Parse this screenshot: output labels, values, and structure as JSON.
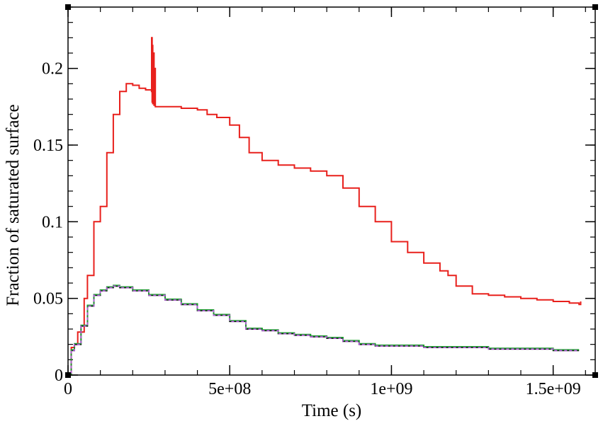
{
  "chart_data": {
    "type": "line",
    "title": "",
    "xlabel": "Time (s)",
    "ylabel": "Fraction of saturated surface",
    "xlim": [
      0,
      1630000000
    ],
    "ylim": [
      0,
      0.24
    ],
    "grid": false,
    "legend": "none",
    "x_ticks": [
      {
        "value": 0,
        "label": "0"
      },
      {
        "value": 500000000,
        "label": "5e+08"
      },
      {
        "value": 1000000000,
        "label": "1e+09"
      },
      {
        "value": 1500000000,
        "label": "1.5e+09"
      }
    ],
    "y_ticks": [
      {
        "value": 0,
        "label": "0"
      },
      {
        "value": 0.05,
        "label": "0.05"
      },
      {
        "value": 0.1,
        "label": "0.1"
      },
      {
        "value": 0.15,
        "label": "0.15"
      },
      {
        "value": 0.2,
        "label": "0.2"
      }
    ],
    "x_minor_step": 100000000,
    "y_minor_step": 0.01,
    "series": [
      {
        "color": "#e8201c",
        "style": "step",
        "x": [
          0,
          10000000,
          20000000,
          30000000,
          50000000,
          60000000,
          80000000,
          100000000,
          120000000,
          140000000,
          160000000,
          180000000,
          200000000,
          220000000,
          240000000,
          258000000,
          258500000,
          260000000,
          261000000,
          262000000,
          264000000,
          266000000,
          268000000,
          270000000,
          300000000,
          350000000,
          400000000,
          430000000,
          460000000,
          500000000,
          530000000,
          560000000,
          600000000,
          650000000,
          700000000,
          750000000,
          800000000,
          850000000,
          900000000,
          950000000,
          1000000000,
          1050000000,
          1100000000,
          1150000000,
          1175000000,
          1200000000,
          1250000000,
          1300000000,
          1350000000,
          1400000000,
          1450000000,
          1500000000,
          1550000000,
          1580000000,
          1585000000
        ],
        "y": [
          0.0,
          0.018,
          0.02,
          0.028,
          0.05,
          0.065,
          0.1,
          0.11,
          0.145,
          0.17,
          0.185,
          0.19,
          0.189,
          0.187,
          0.186,
          0.185,
          0.22,
          0.178,
          0.215,
          0.177,
          0.21,
          0.176,
          0.2,
          0.175,
          0.175,
          0.174,
          0.173,
          0.17,
          0.168,
          0.163,
          0.155,
          0.145,
          0.14,
          0.137,
          0.135,
          0.133,
          0.13,
          0.122,
          0.11,
          0.1,
          0.087,
          0.08,
          0.073,
          0.068,
          0.065,
          0.058,
          0.053,
          0.052,
          0.051,
          0.05,
          0.049,
          0.048,
          0.047,
          0.046,
          0.048
        ]
      },
      {
        "color": "#000000",
        "style": "step",
        "x": [
          0,
          10000000,
          20000000,
          40000000,
          60000000,
          80000000,
          100000000,
          120000000,
          140000000,
          160000000,
          200000000,
          250000000,
          300000000,
          350000000,
          400000000,
          450000000,
          500000000,
          550000000,
          600000000,
          650000000,
          700000000,
          750000000,
          800000000,
          850000000,
          900000000,
          950000000,
          1000000000,
          1100000000,
          1200000000,
          1300000000,
          1400000000,
          1500000000,
          1580000000
        ],
        "y": [
          0.0,
          0.016,
          0.02,
          0.032,
          0.045,
          0.052,
          0.055,
          0.057,
          0.058,
          0.057,
          0.055,
          0.052,
          0.049,
          0.046,
          0.042,
          0.039,
          0.035,
          0.03,
          0.029,
          0.027,
          0.026,
          0.025,
          0.024,
          0.022,
          0.02,
          0.019,
          0.019,
          0.018,
          0.018,
          0.017,
          0.017,
          0.016,
          0.016
        ]
      },
      {
        "color": "#1a9e2a",
        "style": "step",
        "x": [
          0,
          10000000,
          20000000,
          40000000,
          60000000,
          80000000,
          100000000,
          120000000,
          140000000,
          160000000,
          200000000,
          250000000,
          300000000,
          350000000,
          400000000,
          450000000,
          500000000,
          550000000,
          600000000,
          650000000,
          700000000,
          750000000,
          800000000,
          850000000,
          900000000,
          950000000,
          1000000000,
          1100000000,
          1200000000,
          1300000000,
          1400000000,
          1500000000,
          1580000000
        ],
        "y": [
          0.0,
          0.0165,
          0.0205,
          0.0325,
          0.0455,
          0.0525,
          0.0555,
          0.0575,
          0.0585,
          0.0575,
          0.0555,
          0.0525,
          0.0495,
          0.0465,
          0.0425,
          0.0395,
          0.0355,
          0.0305,
          0.0295,
          0.0275,
          0.0265,
          0.0255,
          0.0245,
          0.0225,
          0.0205,
          0.0195,
          0.0195,
          0.0185,
          0.0185,
          0.0175,
          0.0175,
          0.0165,
          0.0165
        ]
      },
      {
        "color": "#b25ad8",
        "style": "dashed",
        "x": [
          0,
          10000000,
          20000000,
          40000000,
          60000000,
          80000000,
          100000000,
          120000000,
          140000000,
          160000000,
          200000000,
          250000000,
          300000000,
          350000000,
          400000000,
          450000000,
          500000000,
          550000000,
          600000000,
          650000000,
          700000000,
          750000000,
          800000000,
          850000000,
          900000000,
          950000000,
          1000000000,
          1100000000,
          1200000000,
          1300000000,
          1400000000,
          1500000000,
          1580000000
        ],
        "y": [
          0.0,
          0.016,
          0.02,
          0.032,
          0.045,
          0.052,
          0.055,
          0.057,
          0.058,
          0.057,
          0.055,
          0.052,
          0.049,
          0.046,
          0.042,
          0.039,
          0.035,
          0.03,
          0.029,
          0.027,
          0.026,
          0.025,
          0.024,
          0.022,
          0.02,
          0.019,
          0.019,
          0.018,
          0.018,
          0.017,
          0.017,
          0.016,
          0.016
        ]
      }
    ]
  }
}
